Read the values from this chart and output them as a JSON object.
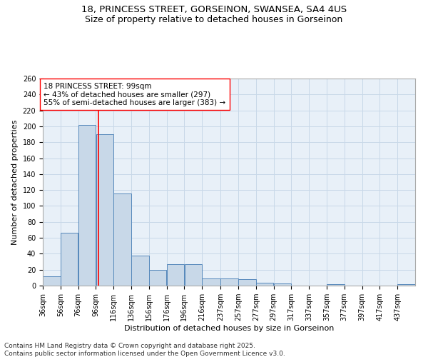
{
  "title_line1": "18, PRINCESS STREET, GORSEINON, SWANSEA, SA4 4US",
  "title_line2": "Size of property relative to detached houses in Gorseinon",
  "xlabel": "Distribution of detached houses by size in Gorseinon",
  "ylabel": "Number of detached properties",
  "footer_line1": "Contains HM Land Registry data © Crown copyright and database right 2025.",
  "footer_line2": "Contains public sector information licensed under the Open Government Licence v3.0.",
  "annotation_line1": "18 PRINCESS STREET: 99sqm",
  "annotation_line2": "← 43% of detached houses are smaller (297)",
  "annotation_line3": "55% of semi-detached houses are larger (383) →",
  "property_sqm": 99,
  "bar_left_edges": [
    36,
    56,
    76,
    96,
    116,
    136,
    156,
    176,
    196,
    216,
    237,
    257,
    277,
    297,
    317,
    337,
    357,
    377,
    397,
    417,
    437
  ],
  "bar_widths": [
    20,
    20,
    20,
    20,
    20,
    20,
    20,
    20,
    20,
    21,
    20,
    20,
    20,
    20,
    20,
    20,
    20,
    20,
    20,
    20,
    20
  ],
  "bar_heights": [
    12,
    66,
    202,
    190,
    116,
    38,
    20,
    27,
    27,
    9,
    9,
    8,
    4,
    3,
    0,
    0,
    2,
    0,
    0,
    0,
    2
  ],
  "bar_color": "#c8d8e8",
  "bar_edge_color": "#5588bb",
  "vline_x": 99,
  "vline_color": "red",
  "ylim": [
    0,
    260
  ],
  "yticks": [
    0,
    20,
    40,
    60,
    80,
    100,
    120,
    140,
    160,
    180,
    200,
    220,
    240,
    260
  ],
  "xtick_labels": [
    "36sqm",
    "56sqm",
    "76sqm",
    "96sqm",
    "116sqm",
    "136sqm",
    "156sqm",
    "176sqm",
    "196sqm",
    "216sqm",
    "237sqm",
    "257sqm",
    "277sqm",
    "297sqm",
    "317sqm",
    "337sqm",
    "357sqm",
    "377sqm",
    "397sqm",
    "417sqm",
    "437sqm"
  ],
  "xtick_positions": [
    36,
    56,
    76,
    96,
    116,
    136,
    156,
    176,
    196,
    216,
    237,
    257,
    277,
    297,
    317,
    337,
    357,
    377,
    397,
    417,
    437
  ],
  "grid_color": "#c8d8e8",
  "bg_color": "#e8f0f8",
  "title_fontsize": 9.5,
  "subtitle_fontsize": 9,
  "axis_label_fontsize": 8,
  "tick_fontsize": 7,
  "annotation_fontsize": 7.5,
  "footer_fontsize": 6.5,
  "xlim_left": 36,
  "xlim_right": 457
}
